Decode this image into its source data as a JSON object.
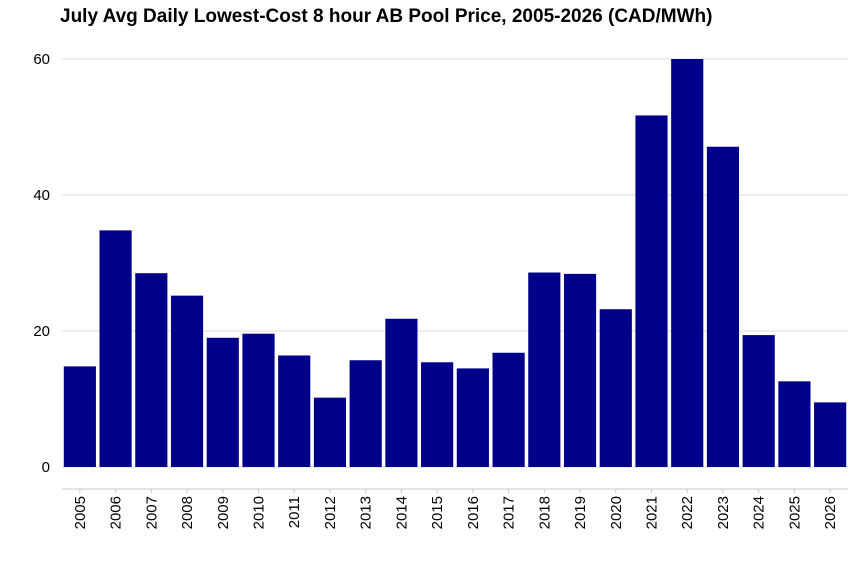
{
  "chart_data": {
    "type": "bar",
    "title": "July Avg Daily Lowest-Cost 8 hour AB Pool Price, 2005-2026 (CAD/MWh)",
    "xlabel": "",
    "ylabel": "",
    "categories": [
      "2005",
      "2006",
      "2007",
      "2008",
      "2009",
      "2010",
      "2011",
      "2012",
      "2013",
      "2014",
      "2015",
      "2016",
      "2017",
      "2018",
      "2019",
      "2020",
      "2021",
      "2022",
      "2023",
      "2024",
      "2025",
      "2026"
    ],
    "values": [
      14.8,
      34.8,
      28.5,
      25.2,
      19.0,
      19.6,
      16.4,
      10.2,
      15.7,
      21.8,
      15.4,
      14.5,
      16.8,
      28.6,
      28.4,
      23.2,
      51.7,
      60.0,
      47.1,
      19.4,
      12.6,
      9.5
    ],
    "ylim": [
      0,
      60
    ],
    "yticks": [
      0,
      20,
      40,
      60
    ],
    "bar_color": "#00008B",
    "grid": "horizontal"
  }
}
